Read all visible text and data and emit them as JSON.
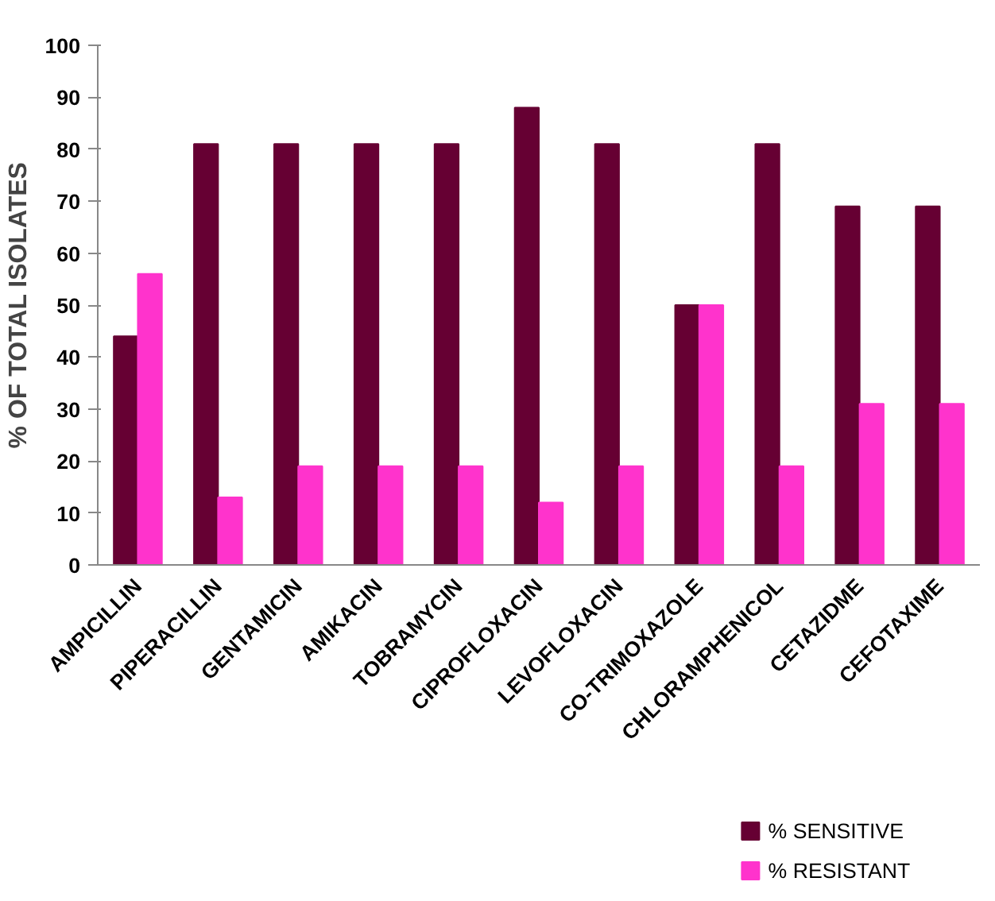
{
  "chart_data": {
    "type": "bar",
    "ylabel": "% OF TOTAL ISOLATES",
    "categories": [
      "AMPICILLIN",
      "PIPERACILLIN",
      "GENTAMICIN",
      "AMIKACIN",
      "TOBRAMYCIN",
      "CIPROFLOXACIN",
      "LEVOFLOXACIN",
      "CO-TRIMOXAZOLE",
      "CHLORAMPHENICOL",
      "CETAZIDME",
      "CEFOTAXIME"
    ],
    "series": [
      {
        "name": "% SENSITIVE",
        "color": "#660033",
        "values": [
          44,
          81,
          81,
          81,
          81,
          88,
          81,
          50,
          81,
          69,
          69
        ]
      },
      {
        "name": "% RESISTANT",
        "color": "#ff33cc",
        "values": [
          56,
          13,
          19,
          19,
          19,
          12,
          19,
          50,
          19,
          31,
          31
        ]
      }
    ],
    "ylim": [
      0,
      100
    ],
    "yticks": [
      0,
      10,
      20,
      30,
      40,
      50,
      60,
      70,
      80,
      90,
      100
    ],
    "grid": false,
    "legend": "bottom right"
  }
}
